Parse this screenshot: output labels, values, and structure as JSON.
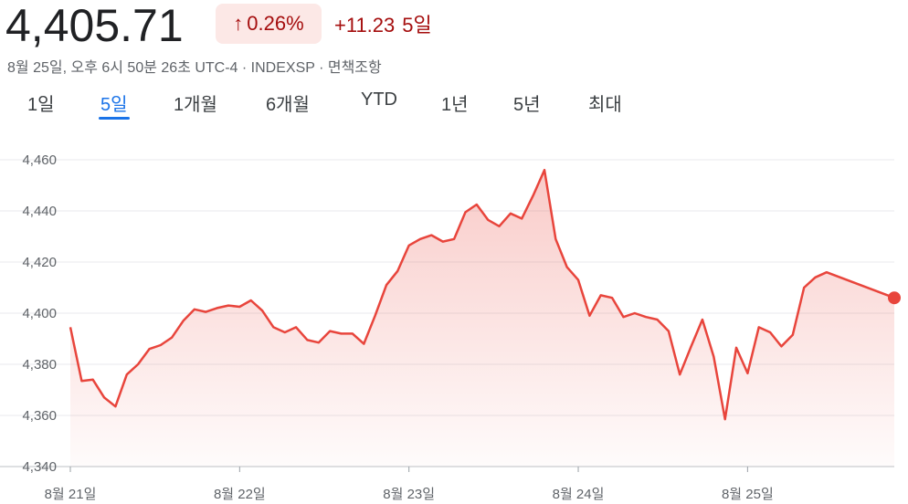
{
  "header": {
    "price": "4,405.71",
    "change_arrow": "↑",
    "change_percent": "0.26%",
    "change_abs": "+11.23",
    "change_period": "5일",
    "meta": "8월 25일, 오후 6시 50분 26초 UTC-4 · INDEXSP · 면책조항"
  },
  "tabs": [
    {
      "label": "1일"
    },
    {
      "label": "5일",
      "active": true
    },
    {
      "label": "1개월"
    },
    {
      "label": "6개월"
    },
    {
      "label": "YTD"
    },
    {
      "label": "1년"
    },
    {
      "label": "5년"
    },
    {
      "label": "최대"
    }
  ],
  "colors": {
    "line": "#e8453c",
    "positive_text": "#a50e0e",
    "accent": "#1a73e8"
  },
  "chart_data": {
    "type": "area",
    "title": "",
    "xlabel": "",
    "ylabel": "",
    "ylim": [
      4340,
      4460
    ],
    "yticks": [
      4340,
      4360,
      4380,
      4400,
      4420,
      4440,
      4460
    ],
    "ytick_labels": [
      "4,340",
      "4,360",
      "4,380",
      "4,400",
      "4,420",
      "4,440",
      "4,460"
    ],
    "xticks": [
      0,
      15,
      30,
      45,
      60
    ],
    "xtick_labels": [
      "8월 21일",
      "8월 22일",
      "8월 23일",
      "8월 24일",
      "8월 25일"
    ],
    "xlim": [
      0,
      73
    ],
    "grid": true,
    "series": [
      {
        "values": [
          4394.5,
          4373.5,
          4374,
          4367,
          4363.5,
          4376,
          4380,
          4386,
          4387.5,
          4390.5,
          4397,
          4401.5,
          4400.5,
          4402,
          4403,
          4402.5,
          4405,
          4401,
          4394.5,
          4392.5,
          4394.5,
          4389.5,
          4388.5,
          4393,
          4392,
          4392,
          4388,
          4399,
          4411,
          4416.5,
          4426.5,
          4429,
          4430.5,
          4428,
          4429,
          4439.5,
          4442.5,
          4436.5,
          4434,
          4439,
          4437,
          4446,
          4456,
          4429,
          4418,
          4413,
          4399,
          4407,
          4406,
          4398.5,
          4400,
          4398.5,
          4397.5,
          4393,
          4376,
          4387,
          4397.5,
          4383,
          4358.5,
          4386.5,
          4376.5,
          4394.5,
          4392.5,
          4387,
          4391.5,
          4410,
          4414,
          4416,
          4406
        ],
        "x": [
          0,
          1,
          2,
          3,
          4,
          5,
          6,
          7,
          8,
          9,
          10,
          11,
          12,
          13,
          14,
          15,
          16,
          17,
          18,
          19,
          20,
          21,
          22,
          23,
          24,
          25,
          26,
          27,
          28,
          29,
          30,
          31,
          32,
          33,
          34,
          35,
          36,
          37,
          38,
          39,
          40,
          41,
          42,
          43,
          44,
          45,
          46,
          47,
          48,
          49,
          50,
          51,
          52,
          53,
          54,
          55,
          56,
          57,
          58,
          59,
          60,
          61,
          62,
          63,
          64,
          65,
          66,
          67,
          73
        ]
      }
    ],
    "last_point_marker": true
  }
}
